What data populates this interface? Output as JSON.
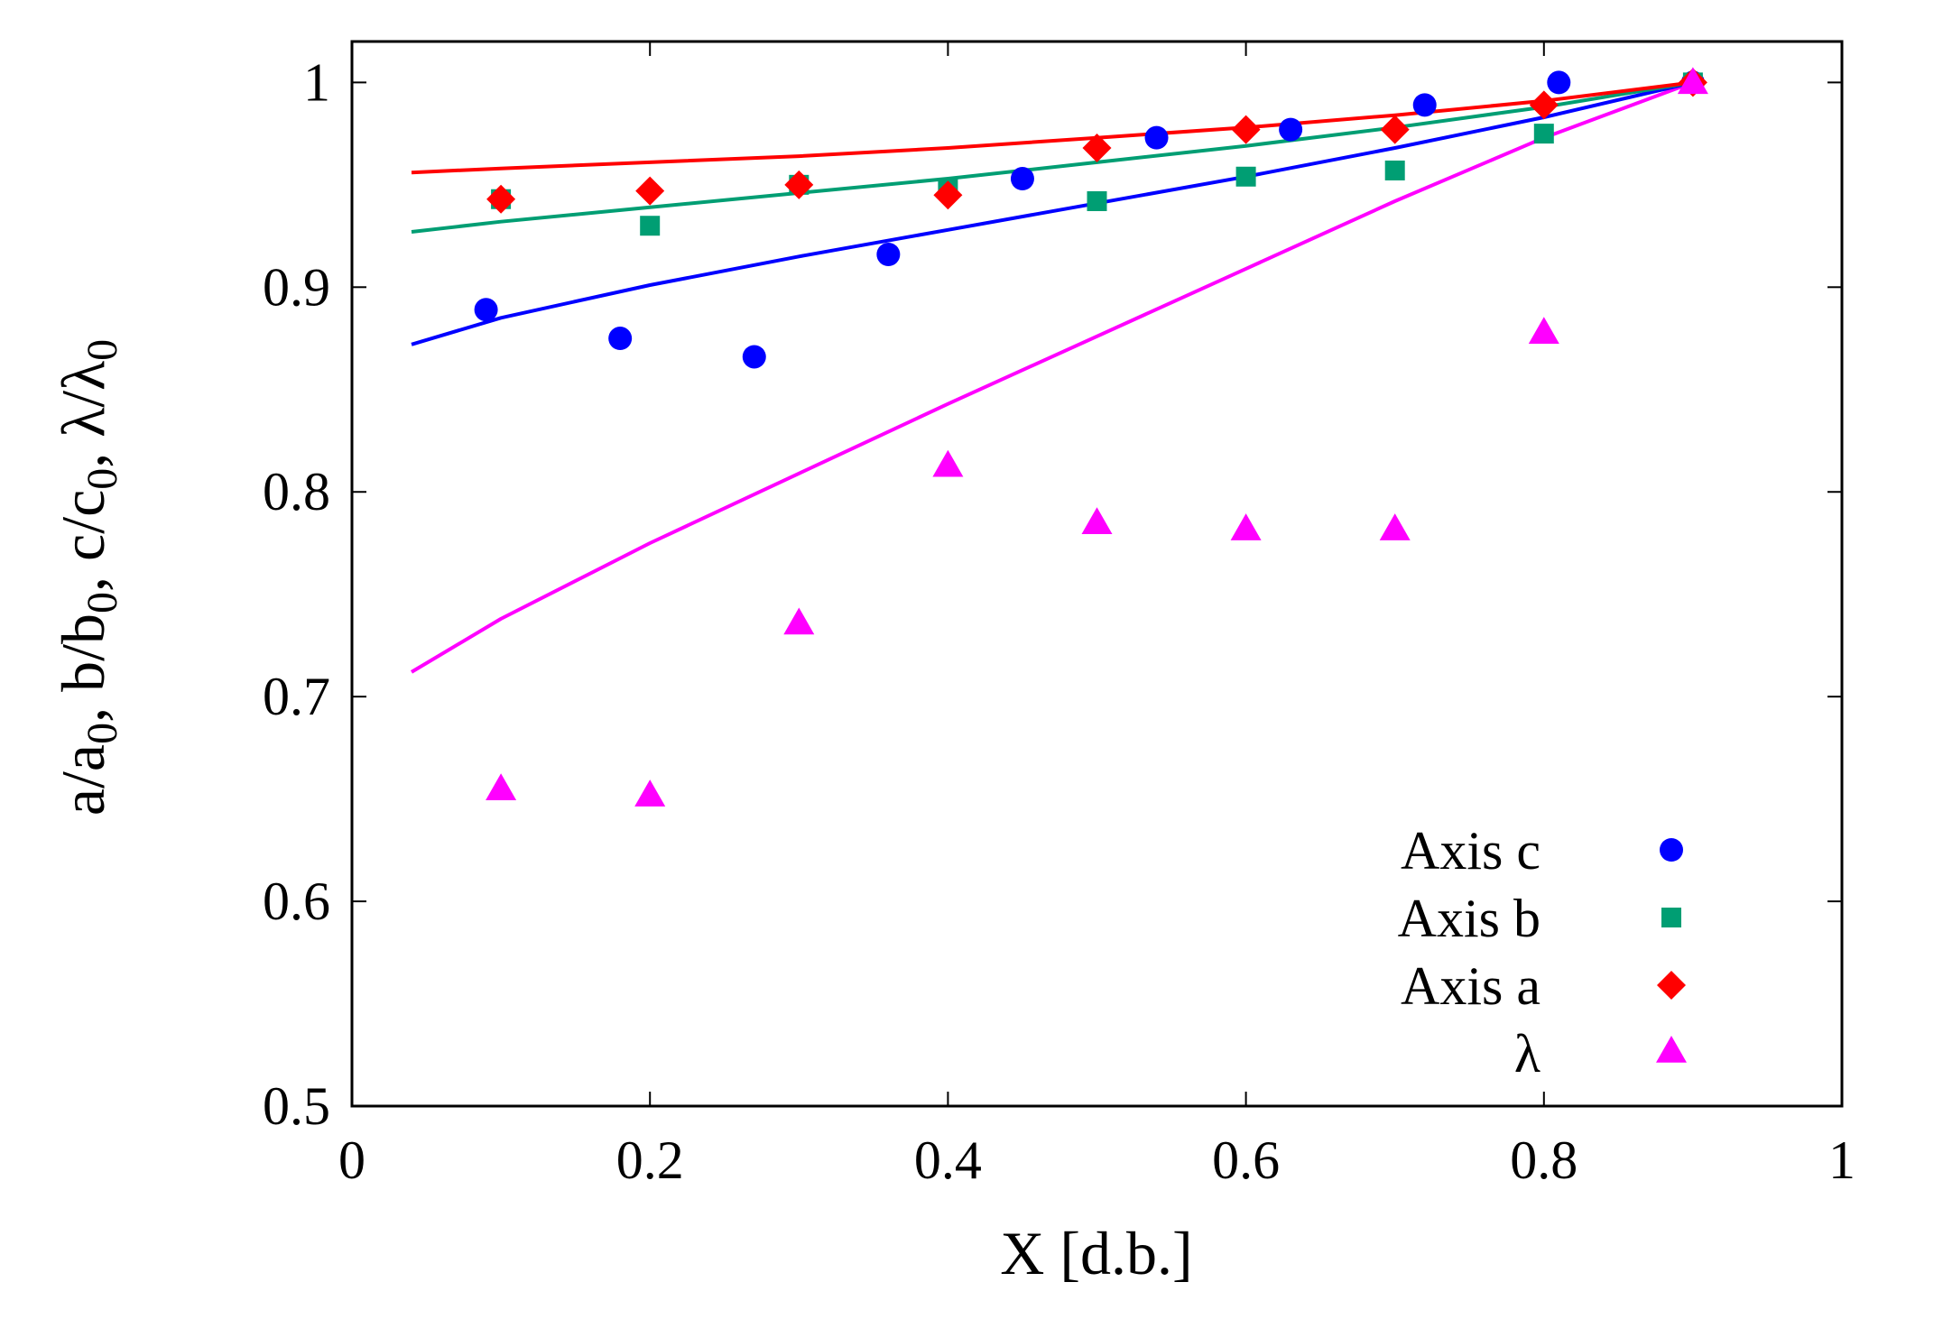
{
  "chart_data": {
    "type": "scatter",
    "title": "",
    "xlabel": "X [d.b.]",
    "ylabel_parts": [
      "a/a",
      "0",
      ", b/b",
      "0",
      ", c/c",
      "0",
      ",  λ/λ",
      "0"
    ],
    "xlim": [
      0,
      1
    ],
    "ylim": [
      0.5,
      1.02
    ],
    "xticks": [
      0,
      0.2,
      0.4,
      0.6,
      0.8,
      1
    ],
    "xtick_labels": [
      "0",
      "0.2",
      "0.4",
      "0.6",
      "0.8",
      "1"
    ],
    "yticks": [
      0.5,
      0.6,
      0.7,
      0.8,
      0.9,
      1.0
    ],
    "ytick_labels": [
      "0.5",
      "0.6",
      "0.7",
      "0.8",
      "0.9",
      "1"
    ],
    "grid": false,
    "legend_position": "bottom-right",
    "series": [
      {
        "name": "Axis c",
        "marker": "circle",
        "color": "#0000ff",
        "x": [
          0.09,
          0.18,
          0.27,
          0.36,
          0.45,
          0.54,
          0.63,
          0.72,
          0.81,
          0.9
        ],
        "y": [
          0.889,
          0.875,
          0.866,
          0.916,
          0.953,
          0.973,
          0.977,
          0.989,
          1.0,
          1.0
        ],
        "fit": {
          "x": [
            0.04,
            0.1,
            0.2,
            0.3,
            0.4,
            0.5,
            0.6,
            0.7,
            0.8,
            0.9
          ],
          "y": [
            0.872,
            0.885,
            0.901,
            0.915,
            0.928,
            0.941,
            0.954,
            0.968,
            0.983,
            1.0
          ]
        }
      },
      {
        "name": "Axis b",
        "marker": "square",
        "color": "#009e73",
        "x": [
          0.1,
          0.2,
          0.3,
          0.4,
          0.5,
          0.6,
          0.7,
          0.8,
          0.9
        ],
        "y": [
          0.943,
          0.93,
          0.95,
          0.948,
          0.942,
          0.954,
          0.957,
          0.975,
          1.0
        ],
        "fit": {
          "x": [
            0.04,
            0.1,
            0.2,
            0.3,
            0.4,
            0.5,
            0.6,
            0.7,
            0.8,
            0.9
          ],
          "y": [
            0.927,
            0.932,
            0.939,
            0.946,
            0.953,
            0.961,
            0.969,
            0.978,
            0.988,
            1.0
          ]
        }
      },
      {
        "name": "Axis a",
        "marker": "diamond",
        "color": "#ff0000",
        "x": [
          0.1,
          0.2,
          0.3,
          0.4,
          0.5,
          0.6,
          0.7,
          0.8,
          0.9
        ],
        "y": [
          0.943,
          0.947,
          0.95,
          0.945,
          0.968,
          0.977,
          0.977,
          0.989,
          1.0
        ],
        "fit": {
          "x": [
            0.04,
            0.1,
            0.2,
            0.3,
            0.4,
            0.5,
            0.6,
            0.7,
            0.8,
            0.9
          ],
          "y": [
            0.956,
            0.958,
            0.961,
            0.964,
            0.968,
            0.973,
            0.978,
            0.984,
            0.991,
            1.0
          ]
        }
      },
      {
        "name": "λ",
        "marker": "triangle",
        "color": "#ff00ff",
        "x": [
          0.1,
          0.2,
          0.3,
          0.4,
          0.5,
          0.6,
          0.7,
          0.8,
          0.9
        ],
        "y": [
          0.655,
          0.652,
          0.736,
          0.813,
          0.785,
          0.782,
          0.782,
          0.878,
          1.0
        ],
        "fit": {
          "x": [
            0.04,
            0.1,
            0.2,
            0.3,
            0.4,
            0.5,
            0.6,
            0.7,
            0.8,
            0.9
          ],
          "y": [
            0.712,
            0.738,
            0.775,
            0.809,
            0.843,
            0.876,
            0.909,
            0.942,
            0.973,
            1.0
          ]
        }
      }
    ]
  }
}
